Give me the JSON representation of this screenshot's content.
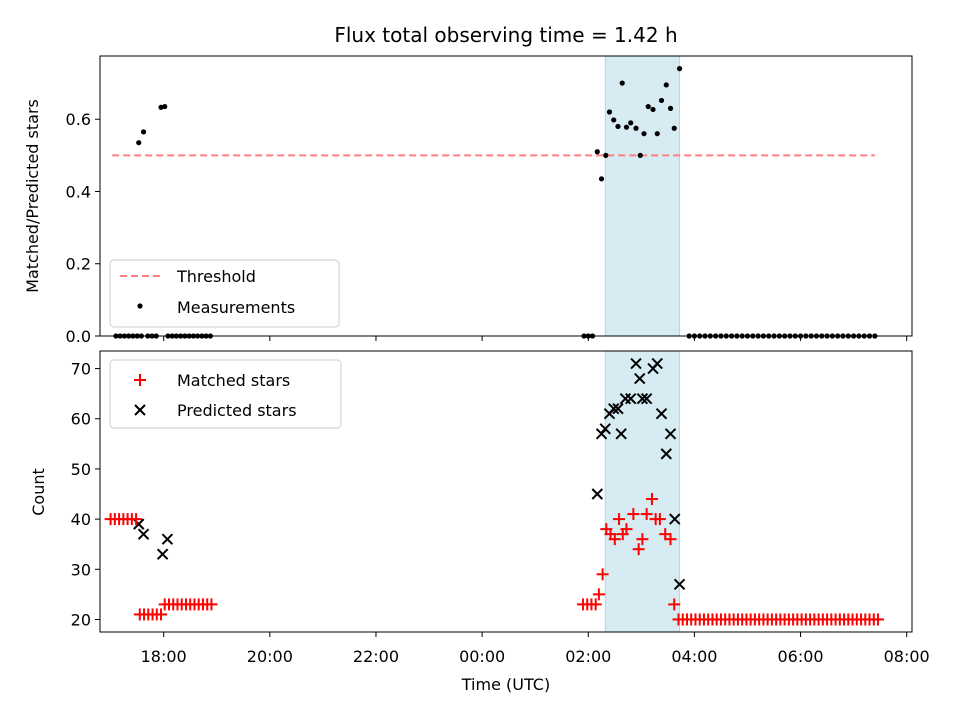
{
  "chart_data": [
    {
      "type": "scatter",
      "title": "Flux total observing time = 1.42 h",
      "xlabel": "",
      "ylabel": "Matched/Predicted stars",
      "xlim": [
        -7.2,
        8.1
      ],
      "ylim": [
        0,
        0.775
      ],
      "yticks": [
        0.0,
        0.2,
        0.4,
        0.6
      ],
      "ytick_labels": [
        "0.0",
        "0.2",
        "0.4",
        "0.6"
      ],
      "highlight_span": [
        2.32,
        3.72
      ],
      "threshold": {
        "name": "Threshold",
        "value": 0.5,
        "x_start": -6.97,
        "x_end": 7.4
      },
      "legend": {
        "position": "lower-left",
        "entries": [
          "Threshold",
          "Measurements"
        ]
      },
      "series": [
        {
          "name": "Measurements",
          "points": [
            [
              -6.9,
              0
            ],
            [
              -6.82,
              0
            ],
            [
              -6.74,
              0
            ],
            [
              -6.66,
              0
            ],
            [
              -6.58,
              0
            ],
            [
              -6.5,
              0
            ],
            [
              -6.42,
              0
            ],
            [
              -6.47,
              0.535
            ],
            [
              -6.38,
              0.565
            ],
            [
              -6.3,
              0
            ],
            [
              -6.22,
              0
            ],
            [
              -6.14,
              0
            ],
            [
              -6.05,
              0.633
            ],
            [
              -5.98,
              0.635
            ],
            [
              -5.92,
              0
            ],
            [
              -5.84,
              0
            ],
            [
              -5.76,
              0
            ],
            [
              -5.68,
              0
            ],
            [
              -5.6,
              0
            ],
            [
              -5.52,
              0
            ],
            [
              -5.44,
              0
            ],
            [
              -5.36,
              0
            ],
            [
              -5.28,
              0
            ],
            [
              -5.2,
              0
            ],
            [
              -5.12,
              0
            ],
            [
              1.92,
              0
            ],
            [
              2.0,
              0
            ],
            [
              2.08,
              0
            ],
            [
              2.17,
              0.51
            ],
            [
              2.25,
              0.435
            ],
            [
              2.33,
              0.5
            ],
            [
              2.4,
              0.62
            ],
            [
              2.48,
              0.598
            ],
            [
              2.56,
              0.58
            ],
            [
              2.64,
              0.7
            ],
            [
              2.72,
              0.578
            ],
            [
              2.8,
              0.59
            ],
            [
              2.9,
              0.575
            ],
            [
              2.98,
              0.5
            ],
            [
              3.05,
              0.56
            ],
            [
              3.13,
              0.635
            ],
            [
              3.22,
              0.627
            ],
            [
              3.3,
              0.56
            ],
            [
              3.38,
              0.652
            ],
            [
              3.47,
              0.695
            ],
            [
              3.55,
              0.63
            ],
            [
              3.62,
              0.575
            ],
            [
              3.72,
              0.74
            ],
            [
              3.9,
              0
            ],
            [
              4.0,
              0
            ],
            [
              4.1,
              0
            ],
            [
              4.2,
              0
            ],
            [
              4.3,
              0
            ],
            [
              4.4,
              0
            ],
            [
              4.5,
              0
            ],
            [
              4.6,
              0
            ],
            [
              4.7,
              0
            ],
            [
              4.8,
              0
            ],
            [
              4.9,
              0
            ],
            [
              5.0,
              0
            ],
            [
              5.1,
              0
            ],
            [
              5.2,
              0
            ],
            [
              5.3,
              0
            ],
            [
              5.4,
              0
            ],
            [
              5.5,
              0
            ],
            [
              5.6,
              0
            ],
            [
              5.7,
              0
            ],
            [
              5.8,
              0
            ],
            [
              5.9,
              0
            ],
            [
              6.0,
              0
            ],
            [
              6.1,
              0
            ],
            [
              6.2,
              0
            ],
            [
              6.3,
              0
            ],
            [
              6.4,
              0
            ],
            [
              6.5,
              0
            ],
            [
              6.6,
              0
            ],
            [
              6.7,
              0
            ],
            [
              6.8,
              0
            ],
            [
              6.9,
              0
            ],
            [
              7.0,
              0
            ],
            [
              7.1,
              0
            ],
            [
              7.2,
              0
            ],
            [
              7.3,
              0
            ],
            [
              7.4,
              0
            ]
          ]
        }
      ]
    },
    {
      "type": "scatter",
      "title": "",
      "xlabel": "Time (UTC)",
      "ylabel": "Count",
      "xlim": [
        -7.2,
        8.1
      ],
      "ylim": [
        17.5,
        73.5
      ],
      "yticks": [
        20,
        30,
        40,
        50,
        60,
        70
      ],
      "ytick_labels": [
        "20",
        "30",
        "40",
        "50",
        "60",
        "70"
      ],
      "xticks": [
        -6,
        -4,
        -2,
        0,
        2,
        4,
        6,
        8
      ],
      "xtick_labels": [
        "18:00",
        "20:00",
        "22:00",
        "00:00",
        "02:00",
        "04:00",
        "06:00",
        "08:00"
      ],
      "highlight_span": [
        2.32,
        3.72
      ],
      "legend": {
        "position": "upper-left",
        "entries": [
          "Matched stars",
          "Predicted stars"
        ]
      },
      "series": [
        {
          "name": "Matched stars",
          "points": [
            [
              -7.0,
              40
            ],
            [
              -6.92,
              40
            ],
            [
              -6.84,
              40
            ],
            [
              -6.76,
              40
            ],
            [
              -6.68,
              40
            ],
            [
              -6.6,
              40
            ],
            [
              -6.52,
              40
            ],
            [
              -6.45,
              21
            ],
            [
              -6.37,
              21
            ],
            [
              -6.29,
              21
            ],
            [
              -6.21,
              21
            ],
            [
              -6.13,
              21
            ],
            [
              -6.05,
              21
            ],
            [
              -5.98,
              23
            ],
            [
              -5.9,
              23
            ],
            [
              -5.82,
              23
            ],
            [
              -5.74,
              23
            ],
            [
              -5.66,
              23
            ],
            [
              -5.58,
              23
            ],
            [
              -5.5,
              23
            ],
            [
              -5.42,
              23
            ],
            [
              -5.34,
              23
            ],
            [
              -5.26,
              23
            ],
            [
              -5.18,
              23
            ],
            [
              -5.1,
              23
            ],
            [
              1.9,
              23
            ],
            [
              1.98,
              23
            ],
            [
              2.06,
              23
            ],
            [
              2.14,
              23
            ],
            [
              2.2,
              25
            ],
            [
              2.27,
              29
            ],
            [
              2.34,
              38
            ],
            [
              2.42,
              37
            ],
            [
              2.5,
              36
            ],
            [
              2.58,
              40
            ],
            [
              2.65,
              37
            ],
            [
              2.72,
              38
            ],
            [
              2.85,
              41
            ],
            [
              2.95,
              34
            ],
            [
              3.02,
              36
            ],
            [
              3.1,
              41
            ],
            [
              3.2,
              44
            ],
            [
              3.27,
              40
            ],
            [
              3.35,
              40
            ],
            [
              3.45,
              37
            ],
            [
              3.55,
              36
            ],
            [
              3.62,
              23
            ],
            [
              3.7,
              20
            ],
            [
              3.78,
              20
            ],
            [
              3.86,
              20
            ],
            [
              3.94,
              20
            ],
            [
              4.02,
              20
            ],
            [
              4.1,
              20
            ],
            [
              4.18,
              20
            ],
            [
              4.26,
              20
            ],
            [
              4.34,
              20
            ],
            [
              4.42,
              20
            ],
            [
              4.5,
              20
            ],
            [
              4.58,
              20
            ],
            [
              4.66,
              20
            ],
            [
              4.74,
              20
            ],
            [
              4.82,
              20
            ],
            [
              4.9,
              20
            ],
            [
              4.98,
              20
            ],
            [
              5.06,
              20
            ],
            [
              5.14,
              20
            ],
            [
              5.22,
              20
            ],
            [
              5.3,
              20
            ],
            [
              5.38,
              20
            ],
            [
              5.46,
              20
            ],
            [
              5.54,
              20
            ],
            [
              5.62,
              20
            ],
            [
              5.7,
              20
            ],
            [
              5.78,
              20
            ],
            [
              5.86,
              20
            ],
            [
              5.94,
              20
            ],
            [
              6.02,
              20
            ],
            [
              6.1,
              20
            ],
            [
              6.18,
              20
            ],
            [
              6.26,
              20
            ],
            [
              6.34,
              20
            ],
            [
              6.42,
              20
            ],
            [
              6.5,
              20
            ],
            [
              6.58,
              20
            ],
            [
              6.66,
              20
            ],
            [
              6.74,
              20
            ],
            [
              6.82,
              20
            ],
            [
              6.9,
              20
            ],
            [
              6.98,
              20
            ],
            [
              7.06,
              20
            ],
            [
              7.14,
              20
            ],
            [
              7.22,
              20
            ],
            [
              7.3,
              20
            ],
            [
              7.38,
              20
            ],
            [
              7.46,
              20
            ]
          ]
        },
        {
          "name": "Predicted stars",
          "points": [
            [
              -6.47,
              39
            ],
            [
              -6.38,
              37
            ],
            [
              -6.02,
              33
            ],
            [
              -5.93,
              36
            ],
            [
              2.17,
              45
            ],
            [
              2.25,
              57
            ],
            [
              2.32,
              58
            ],
            [
              2.4,
              61
            ],
            [
              2.48,
              62
            ],
            [
              2.56,
              62
            ],
            [
              2.62,
              57
            ],
            [
              2.7,
              64
            ],
            [
              2.8,
              64
            ],
            [
              2.9,
              71
            ],
            [
              2.97,
              68
            ],
            [
              3.02,
              64
            ],
            [
              3.1,
              64
            ],
            [
              3.22,
              70
            ],
            [
              3.3,
              71
            ],
            [
              3.38,
              61
            ],
            [
              3.47,
              53
            ],
            [
              3.55,
              57
            ],
            [
              3.63,
              40
            ],
            [
              3.72,
              27
            ]
          ]
        }
      ]
    }
  ]
}
